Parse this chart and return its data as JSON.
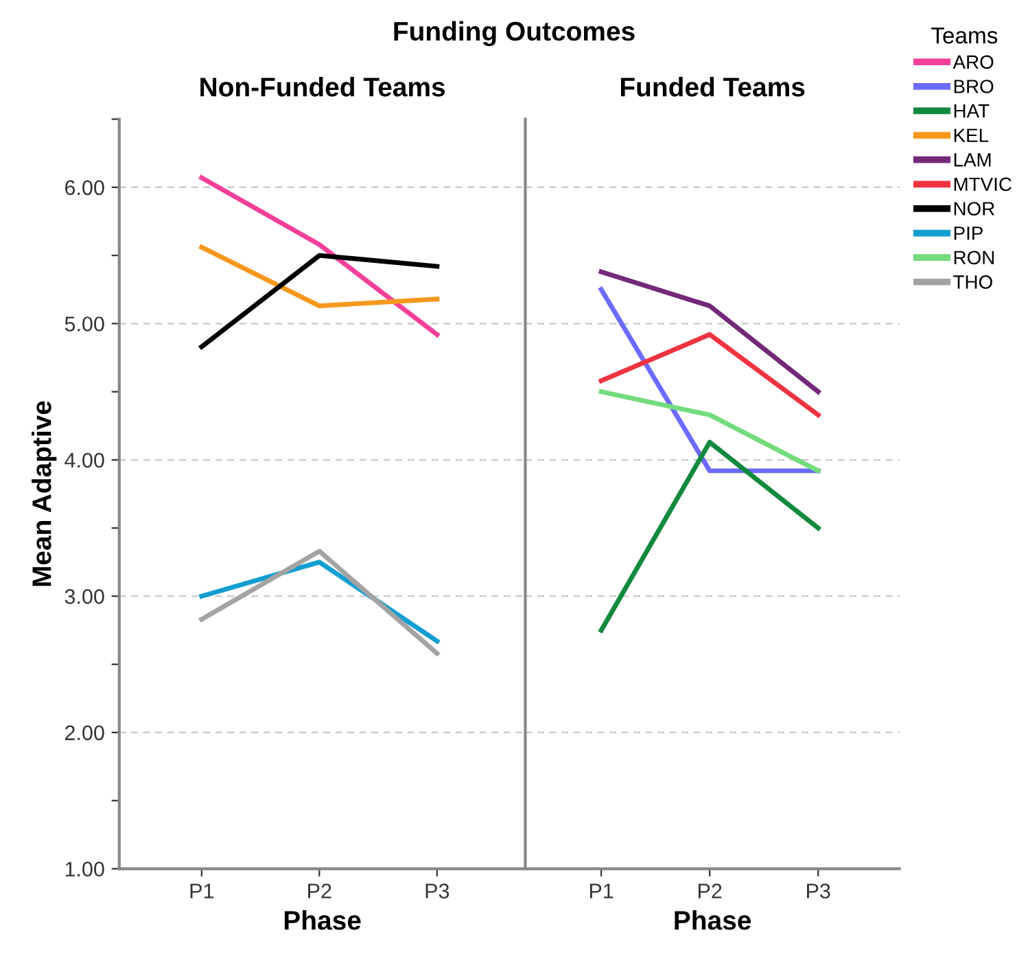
{
  "chart_data": [
    {
      "type": "line",
      "title": "Non-Funded Teams",
      "annotations": [
        "Funding Outcomes"
      ],
      "xlabel": "Phase",
      "ylabel": "Mean Adaptive",
      "categories": [
        "P1",
        "P2",
        "P3"
      ],
      "ylim": [
        1.0,
        6.5
      ],
      "yticks": [
        {
          "value": 1,
          "label": "1.00"
        },
        {
          "value": 1.5,
          "label": null
        },
        {
          "value": 2,
          "label": "2.00"
        },
        {
          "value": 2.5,
          "label": null
        },
        {
          "value": 3,
          "label": "3.00"
        },
        {
          "value": 3.5,
          "label": null
        },
        {
          "value": 4,
          "label": "4.00"
        },
        {
          "value": 4.5,
          "label": null
        },
        {
          "value": 5,
          "label": "5.00"
        },
        {
          "value": 5.5,
          "label": null
        },
        {
          "value": 6,
          "label": "6.00"
        },
        {
          "value": 6.5,
          "label": null
        }
      ],
      "grid": "y",
      "legend": "top right",
      "legend_title": "Teams",
      "marker": "none",
      "line_style": "solid",
      "series": [
        {
          "name": "ARO",
          "color": "#f5409a",
          "values": [
            6.07,
            5.58,
            4.92
          ]
        },
        {
          "name": "BRO",
          "color": "#6b6bff",
          "values": [
            null,
            null,
            null
          ]
        },
        {
          "name": "HAT",
          "color": "#128a3e",
          "values": [
            null,
            null,
            null
          ]
        },
        {
          "name": "KEL",
          "color": "#f7981d",
          "values": [
            5.56,
            5.13,
            5.18
          ]
        },
        {
          "name": "LAM",
          "color": "#73287a",
          "values": [
            null,
            null,
            null
          ]
        },
        {
          "name": "MTVIC",
          "color": "#ef3340",
          "values": [
            null,
            null,
            null
          ]
        },
        {
          "name": "NOR",
          "color": "#000000",
          "values": [
            4.83,
            5.5,
            5.42
          ]
        },
        {
          "name": "PIP",
          "color": "#139ed1",
          "values": [
            3.0,
            3.25,
            2.67
          ]
        },
        {
          "name": "RON",
          "color": "#72dc7c",
          "values": [
            null,
            null,
            null
          ]
        },
        {
          "name": "THO",
          "color": "#a3a3a3",
          "values": [
            2.83,
            3.33,
            2.58
          ]
        }
      ]
    },
    {
      "type": "line",
      "title": "Funded Teams",
      "xlabel": "Phase",
      "categories": [
        "P1",
        "P2",
        "P3"
      ],
      "ylim": [
        1.0,
        6.5
      ],
      "tick_labels": "x",
      "grid": "y",
      "marker": "none",
      "line_style": "solid",
      "series": [
        {
          "color": "#6b6bff",
          "values": [
            5.25,
            3.92,
            3.92
          ]
        },
        {
          "color": "#128a3e",
          "values": [
            2.75,
            4.13,
            3.5
          ]
        },
        {
          "color": "#73287a",
          "values": [
            5.38,
            5.13,
            4.5
          ]
        },
        {
          "color": "#ef3340",
          "values": [
            4.58,
            4.92,
            4.33
          ]
        },
        {
          "color": "#72dc7c",
          "values": [
            4.5,
            4.33,
            3.92
          ]
        }
      ]
    }
  ]
}
